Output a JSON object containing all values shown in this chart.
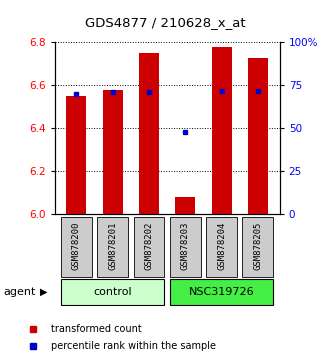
{
  "title": "GDS4877 / 210628_x_at",
  "samples": [
    "GSM878200",
    "GSM878201",
    "GSM878202",
    "GSM878203",
    "GSM878204",
    "GSM878205"
  ],
  "transformed_counts": [
    6.55,
    6.58,
    6.75,
    6.08,
    6.78,
    6.73
  ],
  "percentile_ranks": [
    70,
    71,
    71,
    48,
    72,
    72
  ],
  "groups": [
    "control",
    "control",
    "control",
    "NSC319726",
    "NSC319726",
    "NSC319726"
  ],
  "ymin": 6.0,
  "ymax": 6.8,
  "yticks": [
    6.0,
    6.2,
    6.4,
    6.6,
    6.8
  ],
  "right_yticks": [
    0,
    25,
    50,
    75,
    100
  ],
  "bar_color": "#cc0000",
  "dot_color": "#0000cc",
  "control_color": "#ccffcc",
  "nsc_color": "#44ee44",
  "label_bg_color": "#cccccc",
  "bar_width": 0.55,
  "legend_red_label": "transformed count",
  "legend_blue_label": "percentile rank within the sample",
  "agent_label": "agent"
}
